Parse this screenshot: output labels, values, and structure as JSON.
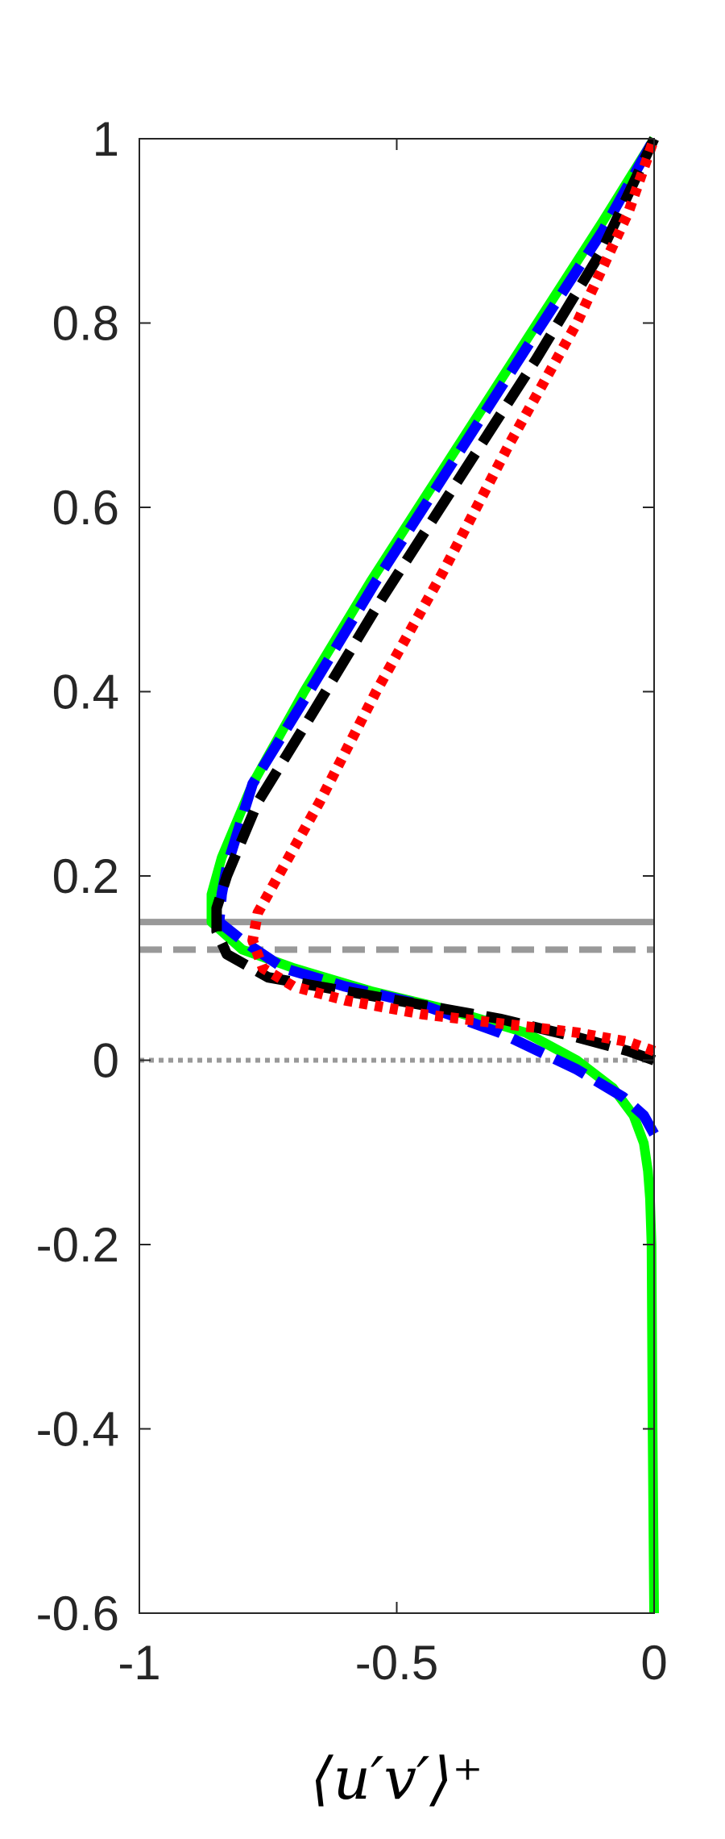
{
  "chart_data": {
    "type": "line",
    "title": "",
    "xlabel": "⟨u′v′⟩⁺",
    "ylabel": "",
    "xlim": [
      -1,
      0
    ],
    "ylim": [
      -0.6,
      1
    ],
    "xticks": [
      -1,
      -0.5,
      0
    ],
    "xtick_labels": [
      "-1",
      "-0.5",
      "0"
    ],
    "yticks": [
      -0.6,
      -0.4,
      -0.2,
      0,
      0.2,
      0.4,
      0.6,
      0.8,
      1
    ],
    "ytick_labels": [
      "-0.6",
      "-0.4",
      "-0.2",
      "0",
      "0.2",
      "0.4",
      "0.6",
      "0.8",
      "1"
    ],
    "grid": false,
    "legend": "none",
    "series": [
      {
        "color": "#00ff00",
        "style": "solid",
        "x": [
          0,
          -0.003,
          -0.005,
          -0.008,
          -0.012,
          -0.02,
          -0.04,
          -0.08,
          -0.15,
          -0.25,
          -0.4,
          -0.55,
          -0.7,
          -0.8,
          -0.86,
          -0.86,
          -0.84,
          -0.78,
          -0.68,
          -0.55,
          -0.4,
          -0.25,
          -0.1,
          0
        ],
        "y": [
          -0.6,
          -0.4,
          -0.2,
          -0.15,
          -0.12,
          -0.09,
          -0.06,
          -0.03,
          0.0,
          0.03,
          0.055,
          0.075,
          0.1,
          0.12,
          0.15,
          0.18,
          0.22,
          0.3,
          0.4,
          0.52,
          0.65,
          0.78,
          0.91,
          1.0
        ]
      },
      {
        "color": "#0000ff",
        "style": "dashed",
        "x": [
          0,
          -0.02,
          -0.06,
          -0.15,
          -0.3,
          -0.45,
          -0.6,
          -0.72,
          -0.8,
          -0.845,
          -0.84,
          -0.83,
          -0.78,
          -0.67,
          -0.54,
          -0.39,
          -0.24,
          -0.1,
          0
        ],
        "y": [
          -0.08,
          -0.06,
          -0.04,
          -0.01,
          0.03,
          0.06,
          0.08,
          0.1,
          0.13,
          0.15,
          0.18,
          0.21,
          0.3,
          0.4,
          0.52,
          0.65,
          0.78,
          0.9,
          1.0
        ]
      },
      {
        "color": "#000000",
        "style": "dashed",
        "x": [
          0,
          -0.05,
          -0.15,
          -0.3,
          -0.45,
          -0.6,
          -0.75,
          -0.83,
          -0.85,
          -0.85,
          -0.83,
          -0.77,
          -0.66,
          -0.53,
          -0.38,
          -0.23,
          -0.1,
          0
        ],
        "y": [
          0.0,
          0.01,
          0.025,
          0.045,
          0.06,
          0.075,
          0.09,
          0.115,
          0.14,
          0.165,
          0.2,
          0.28,
          0.38,
          0.5,
          0.63,
          0.76,
          0.88,
          1.0
        ]
      },
      {
        "color": "#ff0000",
        "style": "dotted",
        "x": [
          0,
          -0.05,
          -0.15,
          -0.3,
          -0.45,
          -0.6,
          -0.7,
          -0.76,
          -0.78,
          -0.77,
          -0.73,
          -0.65,
          -0.54,
          -0.41,
          -0.28,
          -0.15,
          -0.05,
          0
        ],
        "y": [
          0.01,
          0.02,
          0.03,
          0.04,
          0.05,
          0.065,
          0.08,
          0.1,
          0.13,
          0.16,
          0.2,
          0.28,
          0.4,
          0.53,
          0.67,
          0.8,
          0.92,
          1.0
        ]
      }
    ],
    "reference_lines": [
      {
        "y": 0.15,
        "color": "#999999",
        "style": "solid"
      },
      {
        "y": 0.12,
        "color": "#999999",
        "style": "dashed"
      },
      {
        "y": 0.0,
        "color": "#999999",
        "style": "dotted"
      }
    ]
  }
}
